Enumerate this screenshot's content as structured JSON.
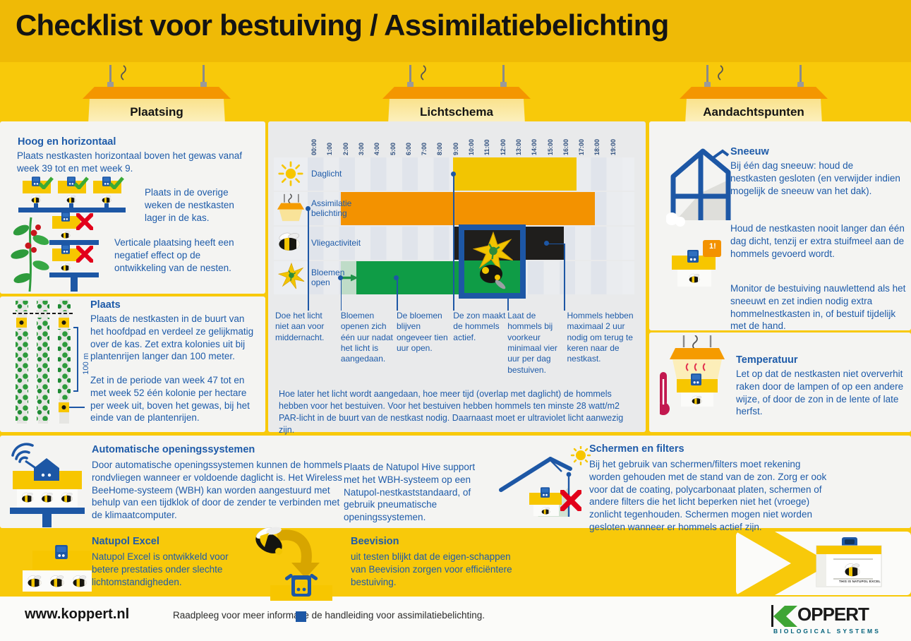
{
  "header": {
    "title": "Checklist voor bestuiving / Assimilatiebelichting"
  },
  "lamps": [
    {
      "label": "Plaatsing"
    },
    {
      "label": "Lichtschema"
    },
    {
      "label": "Aandachtspunten"
    }
  ],
  "plaatsing": {
    "hoog_heading": "Hoog en horizontaal",
    "hoog_p1": "Plaats nestkasten horizontaal boven het gewas vanaf week 39 tot en met week 9.",
    "hoog_p2": "Plaats in de overige weken de nestkasten lager in de kas.",
    "hoog_p3": "Verticale plaatsing heeft een negatief effect op de ontwikkeling van de nesten.",
    "plaats_heading": "Plaats",
    "plaats_p1": "Plaats de nestkasten in de buurt van het hoofdpad en verdeel ze gelijkmatig over de kas. Zet extra kolonies uit bij plantenrijen langer dan 100 meter.",
    "plaats_p2": "Zet in de periode van week 47 tot en met week 52 één kolonie per hectare per week uit, boven het gewas, bij het einde van de plantenrijen.",
    "distance_label": "100 m"
  },
  "chart_data": {
    "type": "bar",
    "subtype": "timeline",
    "title": "Lichtschema",
    "x_ticks": [
      "00:00",
      "1:00",
      "2:00",
      "3:00",
      "4:00",
      "5:00",
      "6:00",
      "7:00",
      "8:00",
      "9:00",
      "10:00",
      "11:00",
      "12:00",
      "13:00",
      "14:00",
      "15:00",
      "16:00",
      "17:00",
      "18:00",
      "19:00"
    ],
    "hours_total": 20,
    "rows": [
      {
        "label": "Daglicht",
        "icon": "sun-icon",
        "color": "#F2C502",
        "start": 9.25,
        "end": 17.1
      },
      {
        "label": "Assimilatie belichting",
        "icon": "lamp-icon",
        "color": "#F39200",
        "start": 2.1,
        "end": 18.25
      },
      {
        "label": "Vliegactiviteit",
        "icon": "bee-icon",
        "color": "#1F1E1C",
        "start": 9.25,
        "end": 16.3
      },
      {
        "label": "Bloemen open",
        "icon": "flower-icon",
        "color": "#0F9C46",
        "start": 3.1,
        "end": 13.1,
        "lead_start": 2.1,
        "lead_color": "#BFDCC8"
      }
    ],
    "annotations": [
      {
        "text": "Doe het licht niet aan voor middernacht.",
        "hour": 0,
        "row": 1,
        "text_dx": -46
      },
      {
        "text": "Bloemen openen zich één uur nadat het licht is aangedaan.",
        "hour": 2.1,
        "row": 3
      },
      {
        "text": "De bloemen blijven ongeveer tien uur open.",
        "hour": 5.65,
        "row": 3
      },
      {
        "text": "De zon maakt de hommels actief.",
        "hour": 9.25,
        "row": 0
      },
      {
        "text": "Laat de hommels bij voorkeur minimaal vier uur per dag bestuiven.",
        "hour": 12.7,
        "row": 2
      },
      {
        "text": "Hommels hebben maximaal 2 uur nodig om terug te keren naar de nestkast.",
        "hour": 16.3,
        "row": 2,
        "dot_hour": 15.2,
        "text_dx": 4,
        "w": 95
      }
    ],
    "footnote": "Hoe later het licht wordt aangedaan, hoe meer tijd (overlap met daglicht) de hommels hebben voor het bestuiven. Voor het bestuiven hebben hommels ten minste 28 watt/m2 PAR-licht in de buurt van de nestkast nodig. Daarnaast moet er ultraviolet licht aanwezig zijn."
  },
  "aandachtspunten": {
    "sneeuw_heading": "Sneeuw",
    "sneeuw_p1": "Bij één dag sneeuw: houd de nestkasten gesloten (en verwijder indien mogelijk de sneeuw van het dak).",
    "sneeuw_p2": "Houd de nestkasten nooit langer dan één dag dicht, tenzij er extra stuifmeel aan de hommels gevoerd wordt.",
    "sneeuw_p3": "Monitor de bestuiving nauwlettend als het sneeuwt en zet indien nodig extra hommelnestkasten in, of bestuif tijdelijk met de hand.",
    "badge": "1!",
    "temperatuur_heading": "Temperatuur",
    "temperatuur_p1": "Let op dat de nestkasten niet oververhit raken door de lampen of op een andere wijze, of door de zon in de lente of late herfst."
  },
  "onderste": {
    "auto_heading": "Automatische openingssystemen",
    "auto_p1": "Door automatische openingssystemen kunnen de hommels rondvliegen wanneer er voldoende daglicht is. Het Wireless BeeHome-systeem (WBH) kan worden aangestuurd met behulp van een tijdklok of door de zender te verbinden met de klimaatcomputer.",
    "hive_p1": "Plaats de Natupol Hive support met het WBH-systeem op een Natupol-nestkaststandaard, of gebruik pneumatische openingssystemen.",
    "schermen_heading": "Schermen en filters",
    "schermen_p1": "Bij het gebruik van schermen/filters moet rekening worden gehouden met de stand van de zon. Zorg er ook voor dat de coating, polycarbonaat platen, schermen of andere filters die het licht beperken niet het (vroege) zonlicht tegenhouden. Schermen mogen niet worden gesloten wanneer er hommels actief zijn."
  },
  "producten": {
    "natupol_heading": "Natupol Excel",
    "natupol_p1": "Natupol Excel is ontwikkeld voor betere prestaties onder slechte lichtomstandigheden.",
    "beevision_heading": "Beevision",
    "beevision_p1": "uit testen blijkt dat de eigen-schappen van Beevision zorgen voor efficiëntere bestuiving.",
    "box_label": "THIS IS NATUPOL EXCEL"
  },
  "footer": {
    "url": "www.koppert.nl",
    "note": "Raadpleeg voor meer informatie de handleiding voor assimilatiebelichting.",
    "brand": "OPPERT",
    "brand_sub": "BIOLOGICAL SYSTEMS"
  },
  "colors": {
    "background": "#F8C90A",
    "banner": "#EFBA06",
    "panel": "#F4F4F2",
    "chart_panel": "#E9EAEB",
    "blue_text": "#1E5BA9",
    "frame_blue": "#1D57A5",
    "bar_yellow": "#F2C502",
    "bar_orange": "#F39200",
    "bar_black": "#1F1E1C",
    "bar_green": "#0F9C46",
    "brand_green": "#3FA535",
    "brand_teal": "#00607A"
  }
}
